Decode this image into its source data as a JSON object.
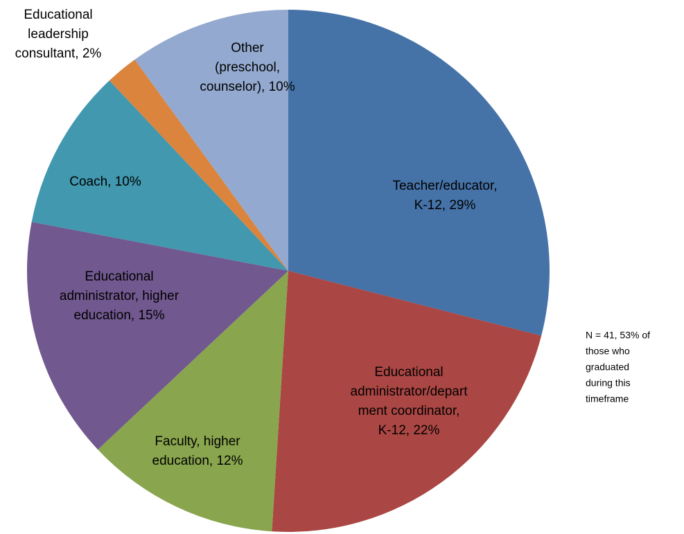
{
  "chart_data": {
    "type": "pie",
    "values": [
      29,
      22,
      12,
      15,
      10,
      2,
      10
    ],
    "value_labels": [
      [
        "Teacher/educator,",
        "K-12, 29%"
      ],
      [
        "Educational",
        "administrator/depart",
        "ment coordinator,",
        "K-12, 22%"
      ],
      [
        "Faculty, higher",
        "education, 12%"
      ],
      [
        "Educational",
        "administrator, higher",
        "education, 15%"
      ],
      [
        "Coach, 10%"
      ],
      [
        "Educational",
        "leadership",
        "consultant, 2%"
      ],
      [
        "Other",
        "(preschool,",
        "counselor), 10%"
      ]
    ],
    "colors": [
      "#4572a7",
      "#aa4643",
      "#89a54e",
      "#71588f",
      "#4198af",
      "#db843d",
      "#93a9cf"
    ],
    "annotation": [
      "N = 41, 53% of",
      "those who",
      "graduated",
      "during this",
      "timeframe"
    ]
  }
}
